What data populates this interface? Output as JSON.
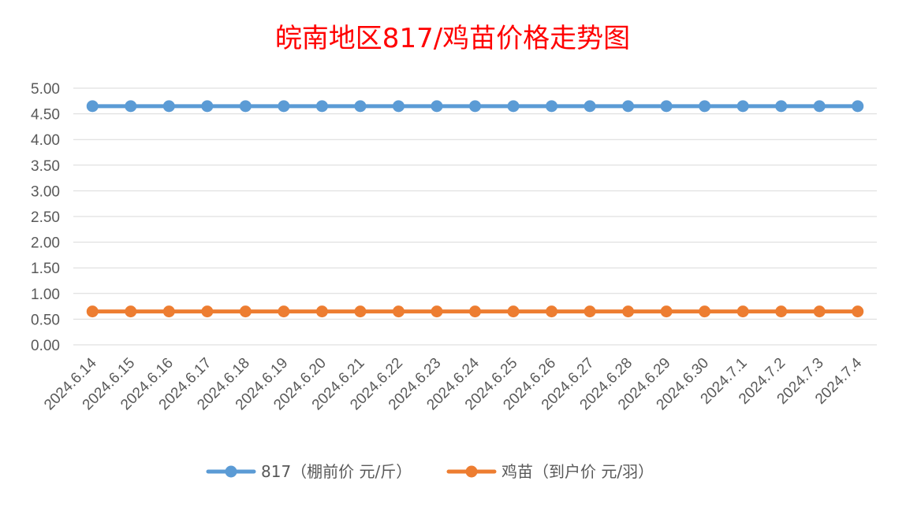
{
  "chart_data": {
    "type": "line",
    "title": "皖南地区817/鸡苗价格走势图",
    "categories": [
      "2024.6.14",
      "2024.6.15",
      "2024.6.16",
      "2024.6.17",
      "2024.6.18",
      "2024.6.19",
      "2024.6.20",
      "2024.6.21",
      "2024.6.22",
      "2024.6.23",
      "2024.6.24",
      "2024.6.25",
      "2024.6.26",
      "2024.6.27",
      "2024.6.28",
      "2024.6.29",
      "2024.6.30",
      "2024.7.1",
      "2024.7.2",
      "2024.7.3",
      "2024.7.4"
    ],
    "ylim": [
      0,
      5
    ],
    "yticks": [
      "0.00",
      "0.50",
      "1.00",
      "1.50",
      "2.00",
      "2.50",
      "3.00",
      "3.50",
      "4.00",
      "4.50",
      "5.00"
    ],
    "grid": true,
    "legend_position": "bottom",
    "series": [
      {
        "name": "817（棚前价 元/斤）",
        "color": "#5b9bd5",
        "values": [
          4.65,
          4.65,
          4.65,
          4.65,
          4.65,
          4.65,
          4.65,
          4.65,
          4.65,
          4.65,
          4.65,
          4.65,
          4.65,
          4.65,
          4.65,
          4.65,
          4.65,
          4.65,
          4.65,
          4.65,
          4.65
        ]
      },
      {
        "name": "鸡苗（到户价 元/羽）",
        "color": "#ed7d31",
        "values": [
          0.65,
          0.65,
          0.65,
          0.65,
          0.65,
          0.65,
          0.65,
          0.65,
          0.65,
          0.65,
          0.65,
          0.65,
          0.65,
          0.65,
          0.65,
          0.65,
          0.65,
          0.65,
          0.65,
          0.65,
          0.65
        ]
      }
    ]
  }
}
